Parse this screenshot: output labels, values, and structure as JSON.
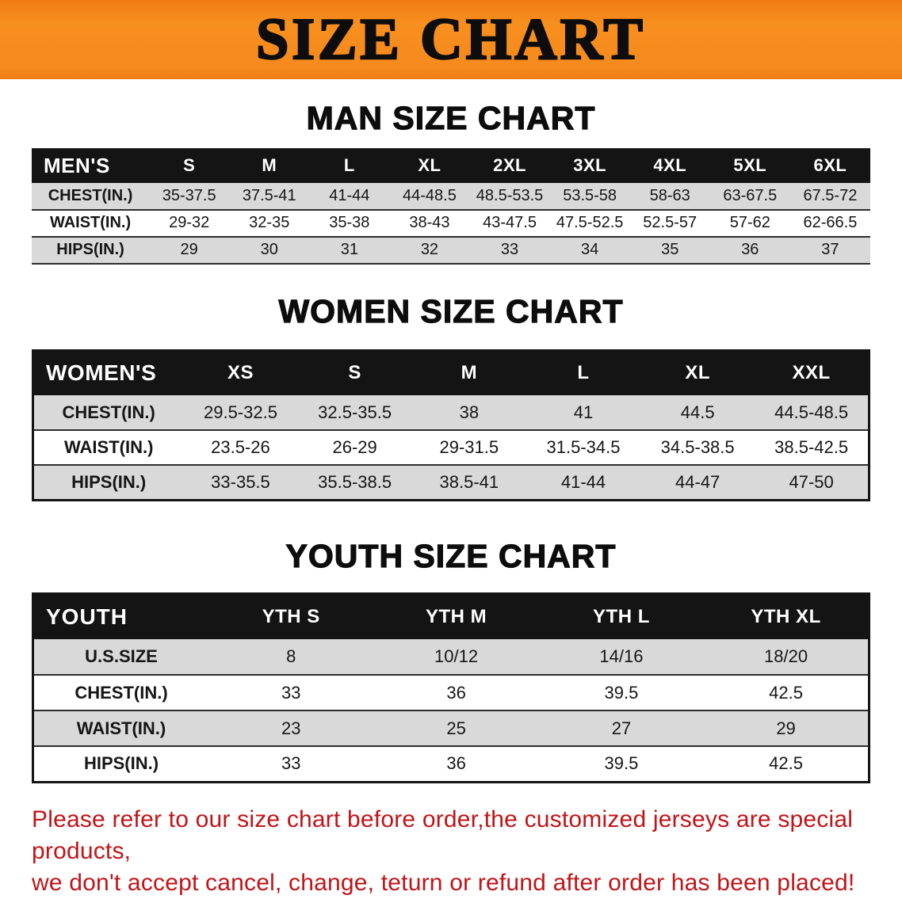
{
  "banner": {
    "title": "SIZE CHART"
  },
  "colors": {
    "banner_bg": "#f68a1e",
    "table_header_bg": "#141414",
    "row_stripe_bg": "#d9d9d9",
    "note_text": "#c01418"
  },
  "sections": [
    {
      "id": "men",
      "heading": "MAN SIZE CHART",
      "label": "MEN'S",
      "columns": [
        "S",
        "M",
        "L",
        "XL",
        "2XL",
        "3XL",
        "4XL",
        "5XL",
        "6XL"
      ],
      "rows": [
        {
          "label": "CHEST(IN.)",
          "values": [
            "35-37.5",
            "37.5-41",
            "41-44",
            "44-48.5",
            "48.5-53.5",
            "53.5-58",
            "58-63",
            "63-67.5",
            "67.5-72"
          ]
        },
        {
          "label": "WAIST(IN.)",
          "values": [
            "29-32",
            "32-35",
            "35-38",
            "38-43",
            "43-47.5",
            "47.5-52.5",
            "52.5-57",
            "57-62",
            "62-66.5"
          ]
        },
        {
          "label": "HIPS(IN.)",
          "values": [
            "29",
            "30",
            "31",
            "32",
            "33",
            "34",
            "35",
            "36",
            "37"
          ]
        }
      ]
    },
    {
      "id": "women",
      "heading": "WOMEN SIZE CHART",
      "label": "WOMEN'S",
      "columns": [
        "XS",
        "S",
        "M",
        "L",
        "XL",
        "XXL"
      ],
      "rows": [
        {
          "label": "CHEST(IN.)",
          "values": [
            "29.5-32.5",
            "32.5-35.5",
            "38",
            "41",
            "44.5",
            "44.5-48.5"
          ]
        },
        {
          "label": "WAIST(IN.)",
          "values": [
            "23.5-26",
            "26-29",
            "29-31.5",
            "31.5-34.5",
            "34.5-38.5",
            "38.5-42.5"
          ]
        },
        {
          "label": "HIPS(IN.)",
          "values": [
            "33-35.5",
            "35.5-38.5",
            "38.5-41",
            "41-44",
            "44-47",
            "47-50"
          ]
        }
      ]
    },
    {
      "id": "youth",
      "heading": "YOUTH SIZE CHART",
      "label": "YOUTH",
      "columns": [
        "YTH S",
        "YTH M",
        "YTH L",
        "YTH XL"
      ],
      "rows": [
        {
          "label": "U.S.SIZE",
          "values": [
            "8",
            "10/12",
            "14/16",
            "18/20"
          ]
        },
        {
          "label": "CHEST(IN.)",
          "values": [
            "33",
            "36",
            "39.5",
            "42.5"
          ]
        },
        {
          "label": "WAIST(IN.)",
          "values": [
            "23",
            "25",
            "27",
            "29"
          ]
        },
        {
          "label": "HIPS(IN.)",
          "values": [
            "33",
            "36",
            "39.5",
            "42.5"
          ]
        }
      ]
    }
  ],
  "note": {
    "line1": "Please refer to our size chart before order,the customized jerseys are special products,",
    "line2": "we don't accept cancel, change, teturn or refund after order has been placed!"
  }
}
